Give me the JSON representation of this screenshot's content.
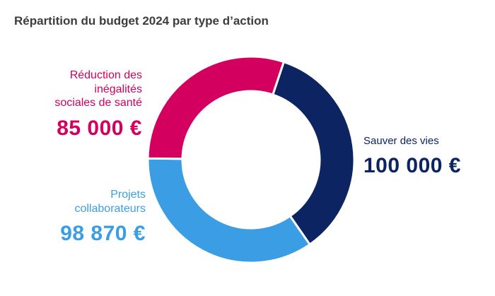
{
  "title": "Répartition du budget 2024 par type d’action",
  "colors": {
    "reduction": "#d4005f",
    "sauver": "#0c2461",
    "projets": "#3b9ee4"
  },
  "labels": {
    "reduction": {
      "name_lines": [
        "Réduction des",
        "inégalités",
        "sociales de santé"
      ],
      "amount": "85 000 €"
    },
    "sauver": {
      "name_lines": [
        "Sauver des vies"
      ],
      "amount": "100 000 €"
    },
    "projets": {
      "name_lines": [
        "Projets",
        "collaborateurs"
      ],
      "amount": "98 870 €"
    }
  },
  "chart_data": {
    "type": "pie",
    "donut": true,
    "title": "Répartition du budget 2024 par type d’action",
    "unit": "€",
    "slices": [
      {
        "key": "sauver",
        "label": "Sauver des vies",
        "value": 100000,
        "color": "#0c2461"
      },
      {
        "key": "projets",
        "label": "Projets collaborateurs",
        "value": 98870,
        "color": "#3b9ee4"
      },
      {
        "key": "reduction",
        "label": "Réduction des inégalités sociales de santé",
        "value": 85000,
        "color": "#d4005f"
      }
    ]
  }
}
